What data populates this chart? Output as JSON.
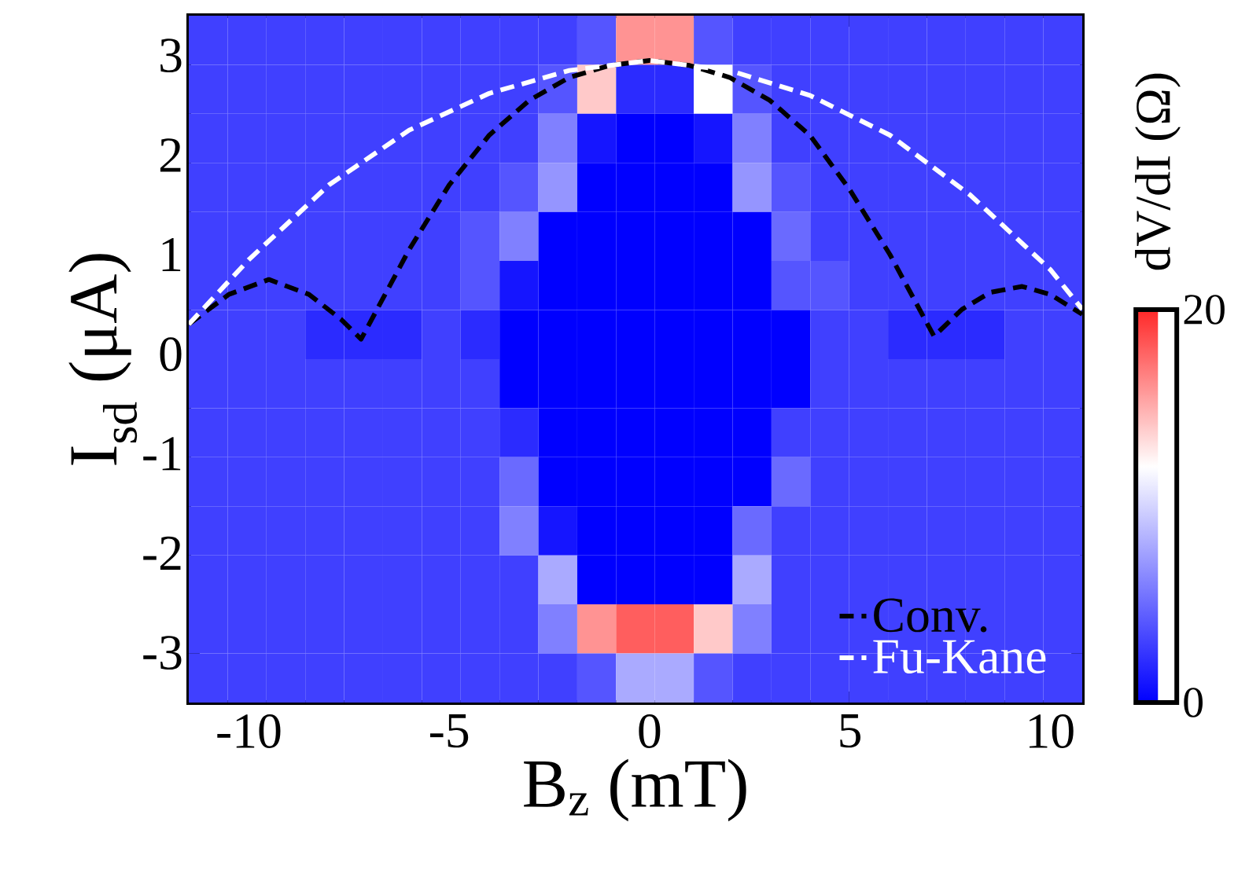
{
  "chart_data": {
    "type": "heatmap",
    "xlabel": "B$_{z}$ (mT)",
    "ylabel": "I$_{sd}$ (μA)",
    "clabel": "dV/dI (Ω)",
    "xlim": [
      -11.5,
      10.8
    ],
    "ylim": [
      -3.5,
      3.4
    ],
    "xticks": [
      -10,
      -5,
      0,
      5,
      10
    ],
    "yticks": [
      -3,
      -2,
      -1,
      0,
      1,
      2,
      3
    ],
    "clim": [
      0,
      20
    ],
    "cticks": [
      0,
      20
    ],
    "cells": [
      [
        3,
        3,
        3,
        3,
        3,
        3,
        3,
        3,
        3,
        3,
        4,
        16,
        16,
        4,
        3,
        3,
        3,
        3,
        3,
        3,
        3,
        3,
        3
      ],
      [
        3,
        3,
        3,
        3,
        3,
        3,
        3,
        3,
        3,
        4,
        14,
        2,
        2,
        12,
        4,
        3,
        3,
        3,
        3,
        3,
        3,
        3,
        3
      ],
      [
        3,
        3,
        3,
        3,
        3,
        3,
        3,
        3,
        3,
        6,
        1,
        0,
        0,
        1,
        6,
        3,
        3,
        3,
        3,
        3,
        3,
        3,
        3
      ],
      [
        3,
        3,
        3,
        3,
        3,
        3,
        3,
        3,
        4,
        7,
        0,
        0,
        0,
        0,
        7,
        4,
        3,
        3,
        3,
        3,
        3,
        3,
        3
      ],
      [
        3,
        3,
        3,
        3,
        3,
        3,
        3,
        4,
        6,
        0,
        0,
        0,
        0,
        0,
        0,
        5,
        3,
        3,
        3,
        3,
        3,
        3,
        3
      ],
      [
        3,
        3,
        3,
        3,
        3,
        3,
        3,
        4,
        1,
        0,
        0,
        0,
        0,
        0,
        0,
        4,
        4,
        3,
        3,
        3,
        3,
        3,
        3
      ],
      [
        3,
        3,
        3,
        2,
        2,
        2,
        3,
        2,
        0,
        0,
        0,
        0,
        0,
        0,
        0,
        0,
        3,
        3,
        2,
        2,
        2,
        3,
        3
      ],
      [
        3,
        3,
        3,
        3,
        3,
        3,
        3,
        3,
        0,
        0,
        0,
        0,
        0,
        0,
        0,
        0,
        3,
        3,
        3,
        3,
        3,
        3,
        3
      ],
      [
        3,
        3,
        3,
        3,
        3,
        3,
        3,
        3,
        2,
        0,
        0,
        0,
        0,
        0,
        0,
        3,
        3,
        3,
        3,
        3,
        3,
        3,
        3
      ],
      [
        3,
        3,
        3,
        3,
        3,
        3,
        3,
        3,
        5,
        0,
        0,
        0,
        0,
        0,
        0,
        5,
        3,
        3,
        3,
        3,
        3,
        3,
        3
      ],
      [
        3,
        3,
        3,
        3,
        3,
        3,
        3,
        3,
        6,
        1,
        0,
        0,
        0,
        0,
        5,
        3,
        3,
        3,
        3,
        3,
        3,
        3,
        3
      ],
      [
        3,
        3,
        3,
        3,
        3,
        3,
        3,
        3,
        3,
        8,
        0,
        0,
        0,
        0,
        8,
        3,
        3,
        3,
        3,
        3,
        3,
        3,
        3
      ],
      [
        3,
        3,
        3,
        3,
        3,
        3,
        3,
        3,
        3,
        6,
        16,
        18,
        18,
        14,
        6,
        3,
        3,
        3,
        3,
        3,
        3,
        3,
        3
      ],
      [
        3,
        3,
        3,
        3,
        3,
        3,
        3,
        3,
        3,
        3,
        4,
        8,
        8,
        4,
        3,
        3,
        3,
        3,
        3,
        3,
        3,
        3,
        3
      ]
    ],
    "series": [
      {
        "name": "Conv.",
        "type": "line",
        "color": "#000000",
        "line_style": "dashed",
        "x": [
          -11.5,
          -10.5,
          -9.5,
          -8.5,
          -7.7,
          -7.2,
          -6,
          -5,
          -4,
          -3,
          -2,
          -1,
          0,
          1,
          2,
          3,
          4,
          5,
          6,
          7.1,
          7.8,
          8.5,
          9.3,
          10,
          10.8
        ],
        "values": [
          0.3,
          0.6,
          0.75,
          0.6,
          0.35,
          0.15,
          1.05,
          1.7,
          2.2,
          2.55,
          2.78,
          2.9,
          2.95,
          2.9,
          2.78,
          2.55,
          2.2,
          1.65,
          1.0,
          0.18,
          0.45,
          0.62,
          0.68,
          0.6,
          0.4
        ]
      },
      {
        "name": "Fu-Kane",
        "type": "line",
        "color": "#ffffff",
        "line_style": "dashed",
        "x": [
          -11.5,
          -10,
          -8,
          -6,
          -4,
          -2,
          0,
          2,
          4,
          6,
          8,
          10,
          10.8
        ],
        "values": [
          0.3,
          0.95,
          1.7,
          2.25,
          2.62,
          2.85,
          2.95,
          2.85,
          2.6,
          2.2,
          1.6,
          0.85,
          0.45
        ]
      }
    ],
    "legend": "bottom right"
  }
}
